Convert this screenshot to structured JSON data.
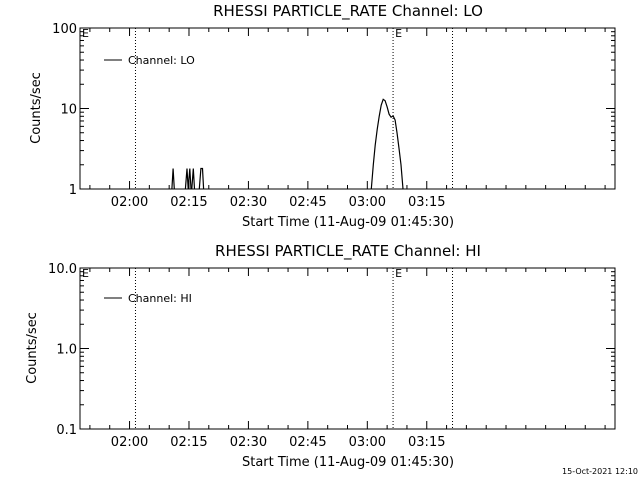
{
  "colors": {
    "background": "#ffffff",
    "foreground": "#000000"
  },
  "footer": {
    "timestamp": "15-Oct-2021 12:10"
  },
  "chart_data": [
    {
      "type": "line",
      "title": "RHESSI PARTICLE_RATE Channel: LO",
      "xlabel": "Start Time (11-Aug-09 01:45:30)",
      "ylabel": "Counts/sec",
      "yscale": "log",
      "xlim": [
        -12.5,
        122.5
      ],
      "ylim": [
        1,
        100
      ],
      "x_ticks": [
        0,
        15,
        30,
        45,
        60,
        75
      ],
      "x_tick_labels": [
        "02:00",
        "02:15",
        "02:30",
        "02:45",
        "03:00",
        "03:15"
      ],
      "x_minor_step": 5,
      "y_ticks": [
        1,
        10,
        100
      ],
      "y_tick_labels": [
        "1",
        "10",
        "100"
      ],
      "legend": {
        "position": "top-left",
        "entries": [
          "Channel: LO"
        ]
      },
      "event_markers": [
        {
          "x": 1.5,
          "label": ""
        },
        {
          "x": 66.5,
          "label": "E"
        },
        {
          "x": 81.5,
          "label": ""
        }
      ],
      "edge_label": "E",
      "series": [
        {
          "name": "Channel: LO",
          "segments": [
            [
              [
                10.7,
                1
              ],
              [
                11.0,
                1.8
              ],
              [
                11.3,
                1
              ]
            ],
            [
              [
                14.1,
                1
              ],
              [
                14.5,
                1.8
              ],
              [
                14.8,
                1
              ],
              [
                15.2,
                1.8
              ],
              [
                15.5,
                1
              ]
            ],
            [
              [
                15.7,
                1
              ],
              [
                16.1,
                1.8
              ],
              [
                16.4,
                1
              ]
            ],
            [
              [
                17.6,
                1
              ],
              [
                18.0,
                1.8
              ],
              [
                18.4,
                1.8
              ],
              [
                18.7,
                1
              ]
            ],
            [
              [
                61.0,
                1
              ],
              [
                61.5,
                2
              ],
              [
                62.0,
                3.5
              ],
              [
                62.5,
                5.5
              ],
              [
                63.0,
                8
              ],
              [
                63.5,
                11
              ],
              [
                64.0,
                13
              ],
              [
                64.5,
                12.5
              ],
              [
                65.0,
                10.5
              ],
              [
                65.5,
                8.5
              ],
              [
                66.0,
                7.8
              ],
              [
                66.5,
                8.1
              ],
              [
                67.0,
                7.2
              ],
              [
                67.5,
                5
              ],
              [
                68.0,
                3.2
              ],
              [
                68.5,
                2
              ],
              [
                69.0,
                1
              ]
            ]
          ]
        }
      ]
    },
    {
      "type": "line",
      "title": "RHESSI PARTICLE_RATE Channel: HI",
      "xlabel": "Start Time (11-Aug-09 01:45:30)",
      "ylabel": "Counts/sec",
      "yscale": "log",
      "xlim": [
        -12.5,
        122.5
      ],
      "ylim": [
        0.1,
        10
      ],
      "x_ticks": [
        0,
        15,
        30,
        45,
        60,
        75
      ],
      "x_tick_labels": [
        "02:00",
        "02:15",
        "02:30",
        "02:45",
        "03:00",
        "03:15"
      ],
      "x_minor_step": 5,
      "y_ticks": [
        0.1,
        1,
        10
      ],
      "y_tick_labels": [
        "0.1",
        "1.0",
        "10.0"
      ],
      "legend": {
        "position": "top-left",
        "entries": [
          "Channel: HI"
        ]
      },
      "event_markers": [
        {
          "x": 1.5,
          "label": ""
        },
        {
          "x": 66.5,
          "label": "E"
        },
        {
          "x": 81.5,
          "label": ""
        }
      ],
      "edge_label": "E",
      "series": [
        {
          "name": "Channel: HI",
          "segments": []
        }
      ]
    }
  ]
}
